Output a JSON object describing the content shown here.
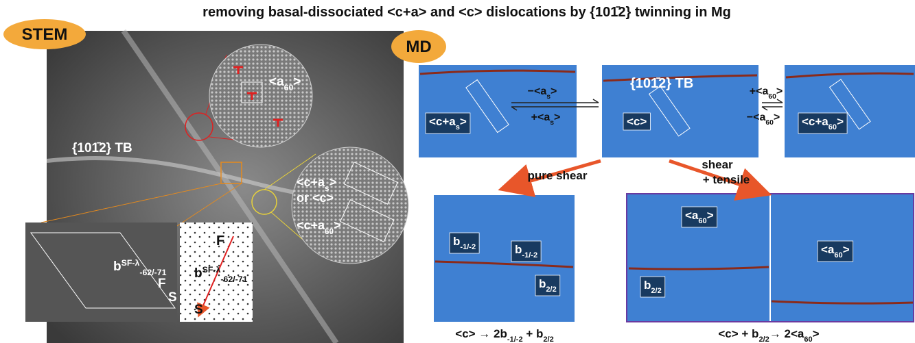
{
  "title": "removing basal-dissociated <c+a> and <c>  dislocations by {101̄2} twinning in Mg",
  "stem": {
    "badge": "STEM",
    "tb": "{101̄2} TB",
    "a60": [
      "<a",
      {
        "sub": "60"
      },
      ">"
    ],
    "cas": [
      "<c+a",
      {
        "sub": "s"
      },
      ">"
    ],
    "or_c": "or <c>",
    "ca60": [
      "<c+a",
      {
        "sub": "60"
      },
      ">"
    ],
    "b_left": [
      "b",
      {
        "sup": "SF-λ"
      },
      {
        "sub": "-62/-71"
      }
    ],
    "f_left": "F",
    "s_left": "S",
    "b_right": [
      "b",
      {
        "sup": "SF-λ"
      },
      {
        "sub": "-62/-71"
      }
    ],
    "f_right": "F",
    "s_right": "S"
  },
  "md": {
    "badge": "MD",
    "tb": "{101̄2} TB",
    "panel1": [
      "<c+a",
      {
        "sub": "s"
      },
      ">"
    ],
    "panel2": "<c>",
    "panel3": [
      "<c+a",
      {
        "sub": "60"
      },
      ">"
    ],
    "arrow1_top": [
      "−<a",
      {
        "sub": "s"
      },
      ">"
    ],
    "arrow1_bottom": [
      "+<a",
      {
        "sub": "s"
      },
      ">"
    ],
    "arrow2_top": [
      "+<a",
      {
        "sub": "60"
      },
      ">"
    ],
    "arrow2_bottom": [
      "−<a",
      {
        "sub": "60"
      },
      ">"
    ],
    "pure_shear": "pure shear",
    "shear": "shear",
    "tensile": "+ tensile",
    "b1": [
      "b",
      {
        "sub": "-1/-2"
      }
    ],
    "b2": [
      "b",
      {
        "sub": "-1/-2"
      }
    ],
    "b3": [
      "b",
      {
        "sub": "2/2"
      }
    ],
    "a60_left": [
      "<a",
      {
        "sub": "60"
      },
      ">"
    ],
    "b4": [
      "b",
      {
        "sub": "2/2"
      }
    ],
    "a60_right": [
      "<a",
      {
        "sub": "60"
      },
      ">"
    ],
    "eq1": [
      "<c> → 2b",
      {
        "sub": "-1/-2"
      },
      " + b",
      {
        "sub": "2/2"
      }
    ],
    "eq2": [
      "<c> + b",
      {
        "sub": "2/2"
      },
      "→ 2<a",
      {
        "sub": "60"
      },
      ">"
    ]
  }
}
